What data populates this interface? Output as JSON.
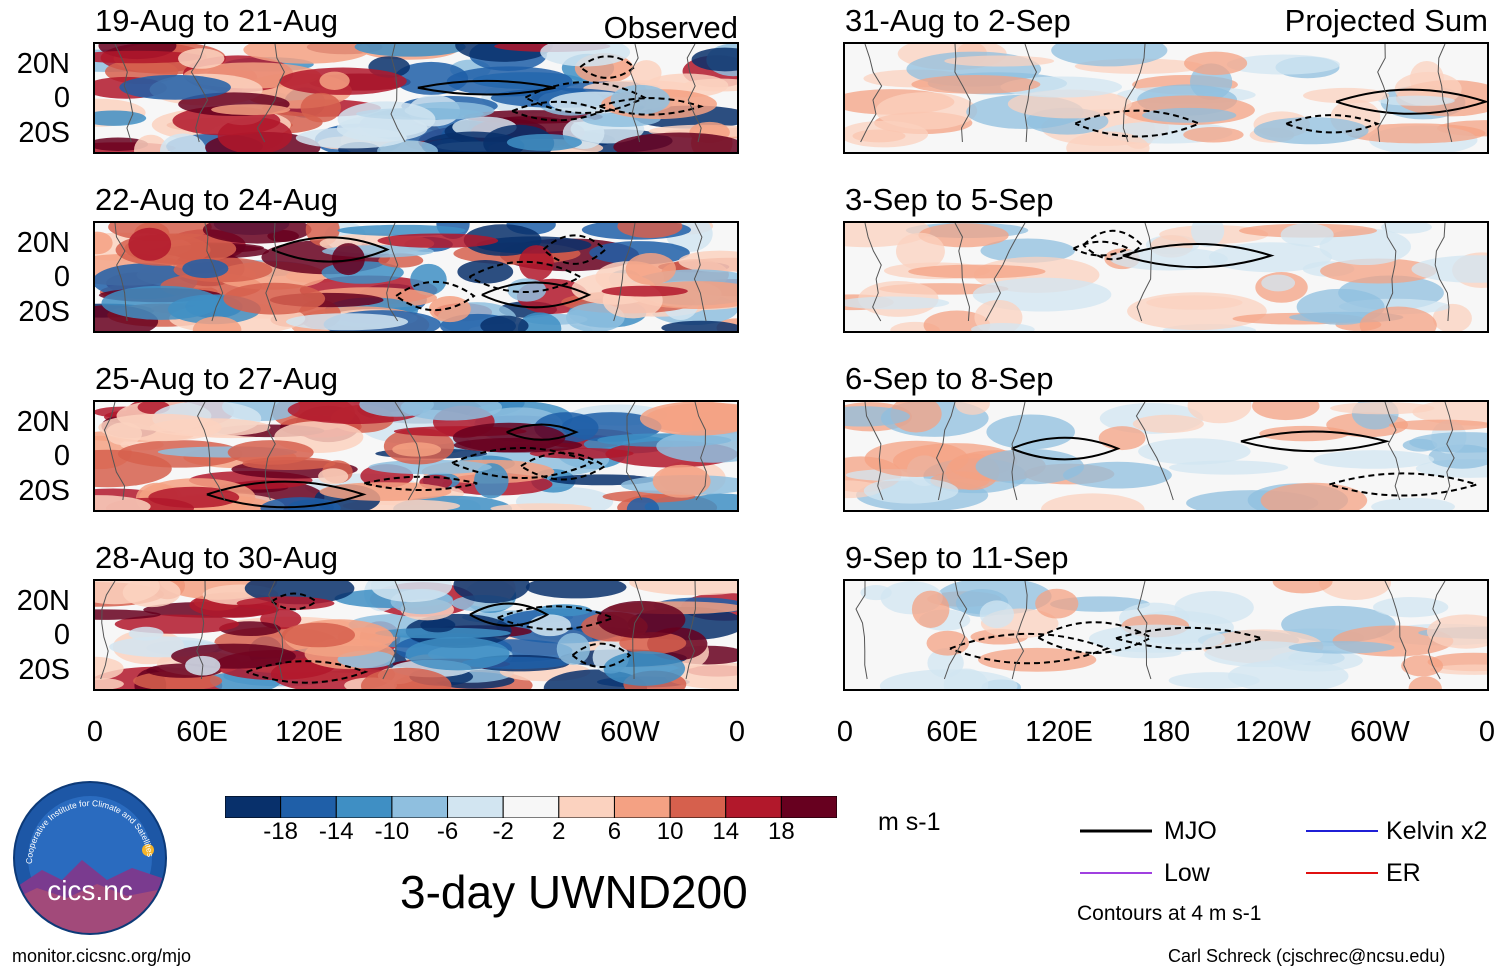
{
  "chart_data": {
    "type": "heatmap",
    "title": "3-day UWND200",
    "units": "m s-1",
    "columns": [
      {
        "header": "Observed",
        "panels": [
          "19-Aug to 21-Aug",
          "22-Aug to 24-Aug",
          "25-Aug to 27-Aug",
          "28-Aug to 30-Aug"
        ]
      },
      {
        "header": "Projected Sum",
        "panels": [
          "31-Aug to 2-Sep",
          "3-Sep to 5-Sep",
          "6-Sep to 8-Sep",
          "9-Sep to 11-Sep"
        ]
      }
    ],
    "y_ticks": [
      "20N",
      "0",
      "20S"
    ],
    "x_ticks": [
      "0",
      "60E",
      "120E",
      "180",
      "120W",
      "60W",
      "0"
    ],
    "colorbar": {
      "labels": [
        "-18",
        "-14",
        "-10",
        "-6",
        "-2",
        "2",
        "6",
        "10",
        "14",
        "18"
      ],
      "colors": [
        "#08306b",
        "#1f5fa8",
        "#3f8fc4",
        "#8fbfdf",
        "#d2e5f1",
        "#f7f7f7",
        "#fbd2bf",
        "#f4a183",
        "#d6604d",
        "#b2182b",
        "#67001f"
      ]
    },
    "legend": [
      {
        "label": "MJO",
        "color": "#000000"
      },
      {
        "label": "Kelvin x2",
        "color": "#1f1fd6"
      },
      {
        "label": "Low",
        "color": "#a040e0"
      },
      {
        "label": "ER",
        "color": "#e01010"
      }
    ],
    "contour_note": "Contours at 4 m s-1"
  },
  "footer": {
    "url": "monitor.cicsnc.org/mjo",
    "credit": "Carl Schreck (cjschrec@ncsu.edu)"
  },
  "logo": {
    "arc_text": "Cooperative Institute for Climate and Satellites",
    "name": "cics.nc"
  }
}
